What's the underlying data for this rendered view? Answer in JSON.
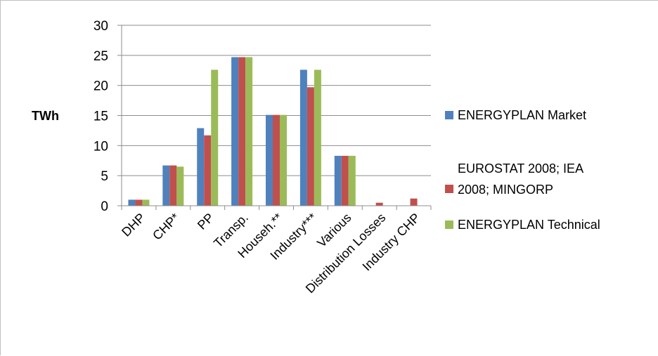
{
  "chart_data": {
    "type": "bar",
    "title": "",
    "xlabel": "",
    "ylabel": "TWh",
    "ylim": [
      0,
      30
    ],
    "yticks": [
      0,
      5,
      10,
      15,
      20,
      25,
      30
    ],
    "grid": true,
    "legend_position": "right",
    "categories": [
      "DHP",
      "CHP*",
      "PP",
      "Transp.",
      "Househ.**",
      "Industry***",
      "Various",
      "Distribution Losses",
      "Industry CHP"
    ],
    "series": [
      {
        "name": "ENERGYPLAN  Market",
        "color": "#4f81bd",
        "values": [
          1.0,
          6.7,
          12.9,
          24.7,
          15.1,
          22.6,
          8.3,
          0,
          0
        ]
      },
      {
        "name": "EUROSTAT 2008; IEA 2008; MINGORP",
        "legend_lines": [
          "EUROSTAT 2008; IEA",
          "2008; MINGORP"
        ],
        "color": "#c0504d",
        "values": [
          1.0,
          6.7,
          11.7,
          24.7,
          15.1,
          19.7,
          8.3,
          0.5,
          1.2
        ]
      },
      {
        "name": "ENERGYPLAN  Technical",
        "color": "#9bbb59",
        "values": [
          1.0,
          6.5,
          22.6,
          24.7,
          15.1,
          22.6,
          8.3,
          0,
          0
        ]
      }
    ]
  }
}
